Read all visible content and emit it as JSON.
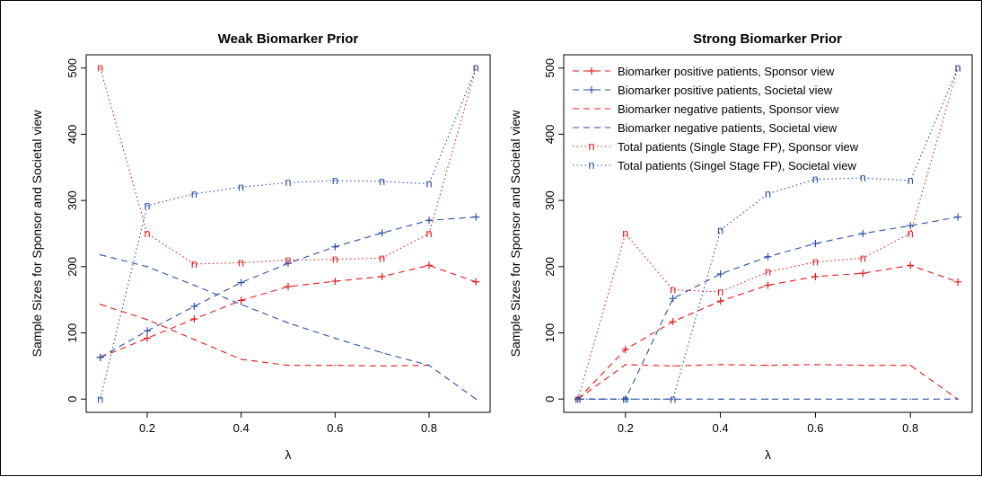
{
  "chart_data": [
    {
      "type": "line",
      "title": "Weak Biomarker Prior",
      "xlabel": "λ",
      "ylabel": "Sample Sizes for Sponsor and Societal view",
      "x": [
        0.1,
        0.2,
        0.3,
        0.4,
        0.5,
        0.6,
        0.7,
        0.8,
        0.9
      ],
      "xlim": [
        0.07,
        0.93
      ],
      "ylim": [
        -20,
        520
      ],
      "xticks": [
        0.2,
        0.4,
        0.6,
        0.8
      ],
      "xtick_labels": [
        "0.2",
        "0.4",
        "0.6",
        "0.8"
      ],
      "yticks": [
        0,
        100,
        200,
        300,
        400,
        500
      ],
      "ytick_labels": [
        "0",
        "100",
        "200",
        "300",
        "400",
        "500"
      ],
      "grid": false,
      "legend": null,
      "series": [
        {
          "name": "Biomarker positive patients, Sponsor view",
          "color": "#e41a1c",
          "dash": "7,5",
          "marker": "+",
          "values": [
            63,
            92,
            121,
            149,
            170,
            178,
            185,
            202,
            177
          ]
        },
        {
          "name": "Biomarker positive patients, Societal view",
          "color": "#2b4fa8",
          "dash": "7,5",
          "marker": "+",
          "values": [
            63,
            103,
            140,
            176,
            205,
            230,
            251,
            270,
            275
          ]
        },
        {
          "name": "Biomarker negative patients, Sponsor view",
          "color": "#e41a1c",
          "dash": "7,5",
          "marker": null,
          "values": [
            143,
            120,
            90,
            60,
            51,
            51,
            50,
            51,
            null
          ]
        },
        {
          "name": "Biomarker negative patients, Societal view",
          "color": "#2b4fa8",
          "dash": "7,5",
          "marker": null,
          "values": [
            218,
            200,
            172,
            143,
            115,
            92,
            70,
            51,
            0
          ]
        },
        {
          "name": "Total patients (Single Stage FP), Sponsor view",
          "color": "#e41a1c",
          "dash": "1.5,3",
          "marker": "n",
          "values": [
            500,
            250,
            204,
            206,
            210,
            211,
            213,
            250,
            500
          ]
        },
        {
          "name": "Total patients (Singel Stage FP), Societal view",
          "color": "#2b4fa8",
          "dash": "1.5,3",
          "marker": "n",
          "values": [
            0,
            292,
            310,
            320,
            327,
            330,
            329,
            325,
            500
          ]
        }
      ]
    },
    {
      "type": "line",
      "title": "Strong Biomarker Prior",
      "xlabel": "λ",
      "ylabel": "Sample Sizes for Sponsor and Societal view",
      "x": [
        0.1,
        0.2,
        0.3,
        0.4,
        0.5,
        0.6,
        0.7,
        0.8,
        0.9
      ],
      "xlim": [
        0.07,
        0.93
      ],
      "ylim": [
        -20,
        520
      ],
      "xticks": [
        0.2,
        0.4,
        0.6,
        0.8
      ],
      "xtick_labels": [
        "0.2",
        "0.4",
        "0.6",
        "0.8"
      ],
      "yticks": [
        0,
        100,
        200,
        300,
        400,
        500
      ],
      "ytick_labels": [
        "0",
        "100",
        "200",
        "300",
        "400",
        "500"
      ],
      "grid": false,
      "legend": "top-left",
      "series": [
        {
          "name": "Biomarker positive patients, Sponsor view",
          "color": "#e41a1c",
          "dash": "7,5",
          "marker": "+",
          "values": [
            0,
            75,
            117,
            148,
            172,
            185,
            190,
            202,
            177
          ]
        },
        {
          "name": "Biomarker positive patients, Societal view",
          "color": "#2b4fa8",
          "dash": "7,5",
          "marker": "+",
          "values": [
            0,
            0,
            152,
            189,
            215,
            235,
            250,
            262,
            275
          ]
        },
        {
          "name": "Biomarker negative patients, Sponsor view",
          "color": "#e41a1c",
          "dash": "7,5",
          "marker": null,
          "values": [
            0,
            52,
            50,
            52,
            51,
            52,
            51,
            51,
            0
          ]
        },
        {
          "name": "Biomarker negative patients, Societal view",
          "color": "#2b4fa8",
          "dash": "7,5",
          "marker": null,
          "values": [
            0,
            0,
            0,
            0,
            0,
            0,
            0,
            0,
            0
          ]
        },
        {
          "name": "Total patients (Single Stage FP), Sponsor view",
          "color": "#e41a1c",
          "dash": "1.5,3",
          "marker": "n",
          "values": [
            0,
            250,
            165,
            162,
            192,
            207,
            213,
            250,
            500
          ]
        },
        {
          "name": "Total patients (Singel Stage FP), Societal view",
          "color": "#2b4fa8",
          "dash": "1.5,3",
          "marker": "n",
          "values": [
            0,
            0,
            0,
            255,
            310,
            332,
            334,
            330,
            500
          ]
        }
      ]
    }
  ]
}
